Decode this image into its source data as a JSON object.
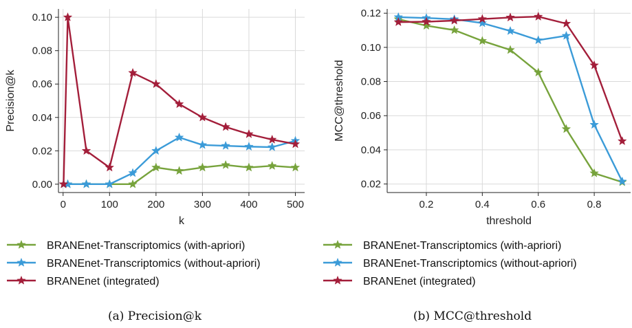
{
  "colors": {
    "with_apriori": "#77a33c",
    "without_apriori": "#3b9bd8",
    "integrated": "#a31e3a",
    "grid": "#d9d9d9",
    "axis": "#222222"
  },
  "captions": {
    "a": "(a) Precision@k",
    "b": "(b) MCC@threshold"
  },
  "chart_data": [
    {
      "type": "line",
      "xlabel": "k",
      "ylabel": "Precision@k",
      "xlim": [
        -10,
        520
      ],
      "ylim": [
        -0.005,
        0.105
      ],
      "xticks": [
        0,
        100,
        200,
        300,
        400,
        500
      ],
      "yticks": [
        0.0,
        0.02,
        0.04,
        0.06,
        0.08,
        0.1
      ],
      "ytick_labels": [
        "0.00",
        "0.02",
        "0.04",
        "0.06",
        "0.08",
        "0.10"
      ],
      "grid": true,
      "legend": "below",
      "series": [
        {
          "name": "BRANEnet-Transcriptomics (with-apriori)",
          "color_key": "with_apriori",
          "x": [
            1,
            10,
            50,
            100,
            150,
            200,
            250,
            300,
            350,
            400,
            450,
            500
          ],
          "y": [
            0.0,
            0.0,
            0.0,
            0.0,
            0.0,
            0.01,
            0.008,
            0.01,
            0.0115,
            0.01,
            0.011,
            0.01
          ]
        },
        {
          "name": "BRANEnet-Transcriptomics (without-apriori)",
          "color_key": "without_apriori",
          "x": [
            1,
            10,
            50,
            100,
            150,
            200,
            250,
            300,
            350,
            400,
            450,
            500
          ],
          "y": [
            0.0,
            0.0,
            0.0,
            0.0,
            0.0067,
            0.02,
            0.028,
            0.0235,
            0.023,
            0.0225,
            0.0222,
            0.026
          ]
        },
        {
          "name": "BRANEnet (integrated)",
          "color_key": "integrated",
          "x": [
            1,
            10,
            50,
            100,
            150,
            200,
            250,
            300,
            350,
            400,
            450,
            500
          ],
          "y": [
            0.0,
            0.1,
            0.02,
            0.01,
            0.0667,
            0.06,
            0.048,
            0.04,
            0.0343,
            0.03,
            0.0267,
            0.024
          ]
        }
      ]
    },
    {
      "type": "line",
      "xlabel": "threshold",
      "ylabel": "MCC@threshold",
      "xlim": [
        0.06,
        0.93
      ],
      "ylim": [
        0.015,
        0.1225
      ],
      "xticks": [
        0.2,
        0.4,
        0.6,
        0.8
      ],
      "xtick_labels": [
        "0.2",
        "0.4",
        "0.6",
        "0.8"
      ],
      "yticks": [
        0.02,
        0.04,
        0.06,
        0.08,
        0.1,
        0.12
      ],
      "ytick_labels": [
        "0.02",
        "0.04",
        "0.06",
        "0.08",
        "0.10",
        "0.12"
      ],
      "grid": true,
      "legend": "below",
      "series": [
        {
          "name": "BRANEnet-Transcriptomics (with-apriori)",
          "color_key": "with_apriori",
          "x": [
            0.1,
            0.2,
            0.3,
            0.4,
            0.5,
            0.6,
            0.7,
            0.8,
            0.9
          ],
          "y": [
            0.1165,
            0.1127,
            0.1101,
            0.1038,
            0.0985,
            0.0853,
            0.0522,
            0.0263,
            0.0211
          ]
        },
        {
          "name": "BRANEnet-Transcriptomics (without-apriori)",
          "color_key": "without_apriori",
          "x": [
            0.1,
            0.2,
            0.3,
            0.4,
            0.5,
            0.6,
            0.7,
            0.8,
            0.9
          ],
          "y": [
            0.1177,
            0.1172,
            0.1165,
            0.1142,
            0.1096,
            0.1042,
            0.1068,
            0.0547,
            0.0215
          ]
        },
        {
          "name": "BRANEnet (integrated)",
          "color_key": "integrated",
          "x": [
            0.1,
            0.2,
            0.3,
            0.4,
            0.5,
            0.6,
            0.7,
            0.8,
            0.9
          ],
          "y": [
            0.1148,
            0.115,
            0.1157,
            0.1166,
            0.1175,
            0.118,
            0.1139,
            0.0895,
            0.0451
          ]
        }
      ]
    }
  ]
}
